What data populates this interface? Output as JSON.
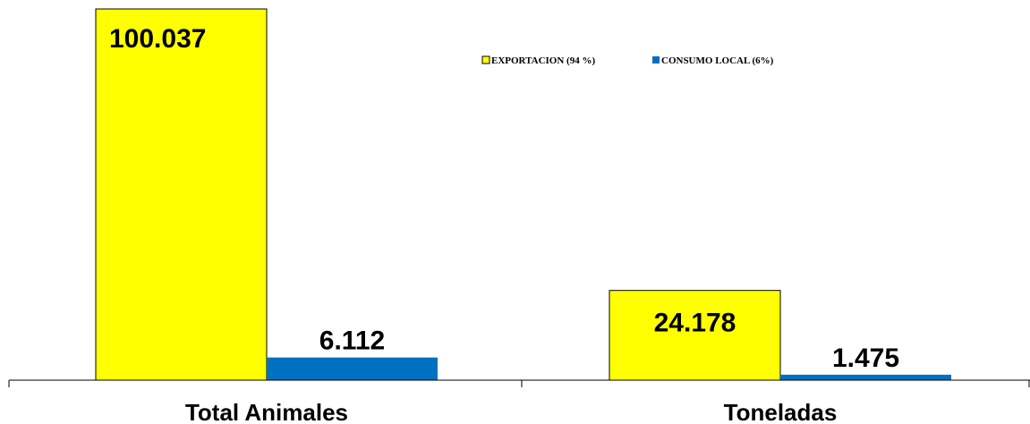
{
  "chart_data": {
    "type": "bar",
    "categories": [
      "Total Animales",
      "Toneladas"
    ],
    "series": [
      {
        "name": "EXPORTACION (94 %)",
        "values": [
          100037,
          24178
        ],
        "labels": [
          "100.037",
          "24.178"
        ],
        "color": "#FFFF00"
      },
      {
        "name": "CONSUMO LOCAL (6%)",
        "values": [
          6112,
          1475
        ],
        "labels": [
          "6.112",
          "1.475"
        ],
        "color": "#0070C0"
      }
    ],
    "title": "",
    "xlabel": "",
    "ylabel": "",
    "ylim": [
      0,
      100037
    ],
    "grid": false,
    "legend": "top-right"
  }
}
